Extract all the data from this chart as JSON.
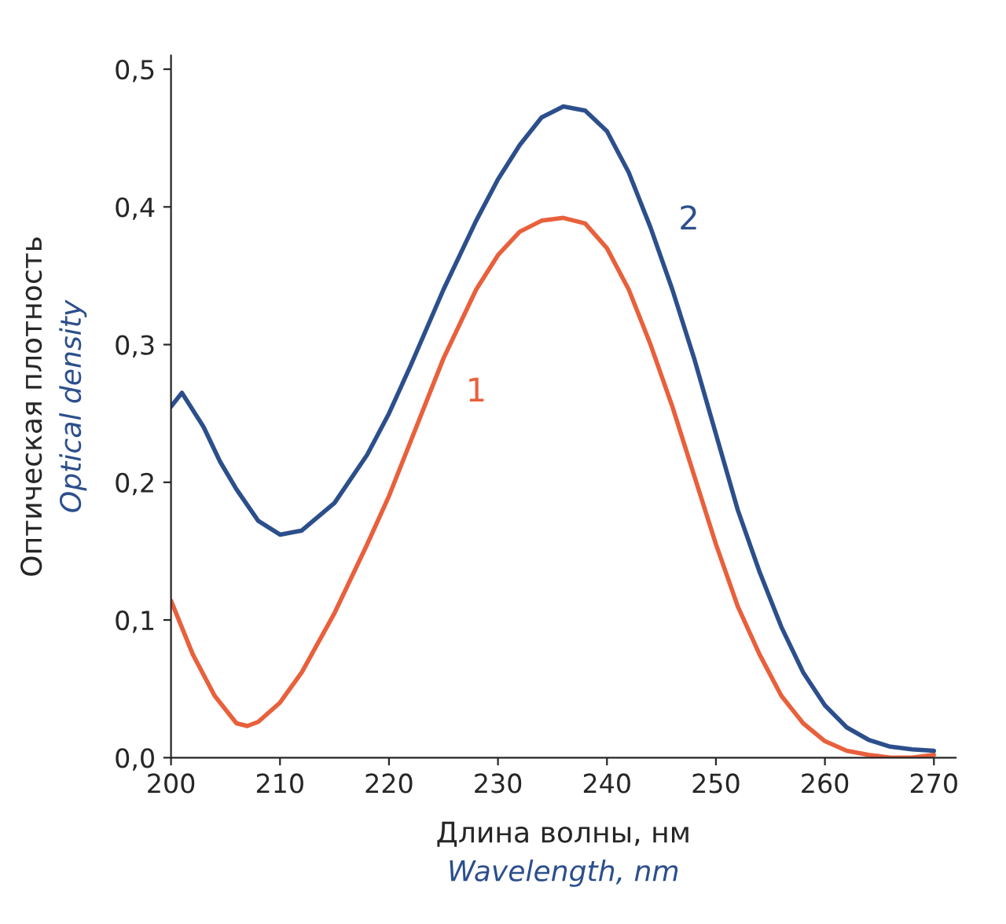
{
  "chart_data": {
    "type": "line",
    "xlabel": "Длина волны, нм\nWavelength, nm",
    "ylabel": "Оптическая плотность\nOptical density",
    "series": [
      {
        "name": "1",
        "color": "#e8603c",
        "x": [
          200,
          202,
          204,
          206,
          207,
          208,
          210,
          212,
          215,
          218,
          220,
          222,
          225,
          228,
          230,
          232,
          234,
          236,
          238,
          240,
          242,
          244,
          246,
          248,
          250,
          252,
          254,
          256,
          258,
          260,
          262,
          264,
          266,
          268,
          270
        ],
        "values": [
          0.114,
          0.075,
          0.045,
          0.025,
          0.023,
          0.026,
          0.04,
          0.062,
          0.105,
          0.155,
          0.19,
          0.23,
          0.29,
          0.34,
          0.365,
          0.382,
          0.39,
          0.392,
          0.388,
          0.37,
          0.34,
          0.3,
          0.255,
          0.205,
          0.155,
          0.11,
          0.075,
          0.045,
          0.025,
          0.012,
          0.005,
          0.002,
          0.0,
          0.0,
          0.002
        ]
      },
      {
        "name": "2",
        "color": "#2c4f8c",
        "x": [
          200,
          201,
          203,
          204.5,
          206,
          208,
          210,
          212,
          215,
          218,
          220,
          222,
          225,
          228,
          230,
          232,
          234,
          236,
          238,
          240,
          242,
          244,
          246,
          248,
          250,
          252,
          254,
          256,
          258,
          260,
          262,
          264,
          266,
          268,
          270
        ],
        "values": [
          0.255,
          0.265,
          0.24,
          0.215,
          0.195,
          0.172,
          0.162,
          0.165,
          0.185,
          0.22,
          0.25,
          0.285,
          0.34,
          0.39,
          0.42,
          0.445,
          0.465,
          0.473,
          0.47,
          0.455,
          0.425,
          0.385,
          0.34,
          0.29,
          0.235,
          0.18,
          0.135,
          0.095,
          0.062,
          0.038,
          0.022,
          0.013,
          0.008,
          0.006,
          0.005
        ]
      }
    ],
    "xlim": [
      200,
      272
    ],
    "xticks": [
      200,
      210,
      220,
      230,
      240,
      250,
      260,
      270
    ],
    "ylim": [
      0,
      0.51
    ],
    "yticks": [
      {
        "value": 0,
        "label": "0,0"
      },
      {
        "value": 0.1,
        "label": "0,1"
      },
      {
        "value": 0.2,
        "label": "0,2"
      },
      {
        "value": 0.3,
        "label": "0,3"
      },
      {
        "value": 0.4,
        "label": "0,4"
      },
      {
        "value": 0.5,
        "label": "0,5"
      }
    ],
    "grid": false,
    "legend": false,
    "marker": "none",
    "line_style": "solid"
  }
}
